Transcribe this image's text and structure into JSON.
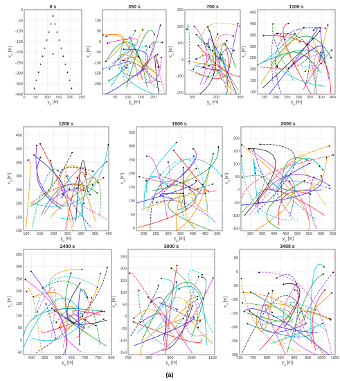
{
  "figure": {
    "caption": "(a)",
    "xlabel": "y",
    "xlabel_sub": "D",
    "xlabel_unit": "[m]",
    "ylabel": "x",
    "ylabel_sub": "D",
    "ylabel_unit": "[m]"
  },
  "chart_data": [
    {
      "type": "line",
      "title": "0 s",
      "xlim": [
        0,
        250
      ],
      "ylim": [
        -400,
        0
      ],
      "xticks": [
        0,
        50,
        100,
        150,
        200,
        250
      ],
      "yticks": [
        -400,
        -350,
        -300,
        -250,
        -200,
        -150,
        -100,
        -50,
        0
      ],
      "xtick_labels": [
        "0",
        "50",
        "100",
        "150",
        "200",
        "250"
      ],
      "ytick_labels": [
        "-400",
        "-350",
        "-300",
        "-250",
        "-200",
        "-150",
        "-100",
        "-50",
        "0"
      ]
    },
    {
      "type": "line",
      "title": "350 s",
      "xlim": [
        0,
        250
      ],
      "ylim": [
        -250,
        150
      ],
      "xticks": [
        50,
        100,
        150,
        200
      ],
      "yticks": [
        -200,
        -150,
        -100,
        -50,
        0,
        50,
        100
      ],
      "xtick_labels": [
        "50",
        "100",
        "150",
        "200"
      ],
      "ytick_labels": [
        "-200",
        "-150",
        "-100",
        "-50",
        "0",
        "50",
        "100"
      ]
    },
    {
      "type": "line",
      "title": "700 s",
      "xlim": [
        70,
        300
      ],
      "ylim": [
        -210,
        300
      ],
      "xticks": [
        100,
        200,
        300
      ],
      "yticks": [
        -200,
        -100,
        0,
        100,
        200,
        300
      ],
      "xtick_labels": [
        "100",
        "200",
        "300"
      ],
      "ytick_labels": [
        "-200",
        "-100",
        "0",
        "100",
        "200",
        "300"
      ]
    },
    {
      "type": "line",
      "title": "1100 s",
      "xlim": [
        120,
        460
      ],
      "ylim": [
        90,
        460
      ],
      "xticks": [
        150,
        200,
        250,
        300,
        350,
        400,
        450
      ],
      "yticks": [
        100,
        150,
        200,
        250,
        300,
        350,
        400,
        450
      ],
      "xtick_labels": [
        "150",
        "200",
        "250",
        "300",
        "350",
        "400",
        "450"
      ],
      "ytick_labels": [
        "100",
        "150",
        "200",
        "250",
        "300",
        "350",
        "400",
        "450"
      ]
    },
    {
      "type": "line",
      "title": "1200 s",
      "xlim": [
        90,
        400
      ],
      "ylim": [
        100,
        480
      ],
      "xticks": [
        100,
        150,
        200,
        250,
        300,
        350,
        400
      ],
      "yticks": [
        100,
        150,
        200,
        250,
        300,
        350,
        400,
        450
      ],
      "xtick_labels": [
        "100",
        "150",
        "200",
        "250",
        "300",
        "350",
        "400"
      ],
      "ytick_labels": [
        "100",
        "150",
        "200",
        "250",
        "300",
        "350",
        "400",
        "450"
      ]
    },
    {
      "type": "line",
      "title": "1600 s",
      "xlim": [
        170,
        520
      ],
      "ylim": [
        -10,
        370
      ],
      "xticks": [
        200,
        250,
        300,
        350,
        400,
        450,
        500
      ],
      "yticks": [
        0,
        50,
        100,
        150,
        200,
        250,
        300,
        350
      ],
      "xtick_labels": [
        "200",
        "250",
        "300",
        "350",
        "400",
        "450",
        "500"
      ],
      "ytick_labels": [
        "0",
        "50",
        "100",
        "150",
        "200",
        "250",
        "300",
        "350"
      ]
    },
    {
      "type": "line",
      "title": "2000 s",
      "xlim": [
        260,
        660
      ],
      "ylim": [
        -160,
        245
      ],
      "xticks": [
        300,
        350,
        400,
        450,
        500,
        550,
        600,
        650
      ],
      "yticks": [
        -150,
        -100,
        -50,
        0,
        50,
        100,
        150,
        200
      ],
      "xtick_labels": [
        "300",
        "350",
        "400",
        "450",
        "500",
        "550",
        "600",
        "650"
      ],
      "ytick_labels": [
        "-150",
        "-100",
        "-50",
        "0",
        "50",
        "100",
        "150",
        "200"
      ]
    },
    {
      "type": "line",
      "title": "2400 s",
      "xlim": [
        470,
        800
      ],
      "ylim": [
        -60,
        370
      ],
      "xticks": [
        500,
        550,
        600,
        650,
        700,
        750,
        800
      ],
      "yticks": [
        -50,
        0,
        50,
        100,
        150,
        200,
        250,
        300,
        350
      ],
      "xtick_labels": [
        "500",
        "550",
        "600",
        "650",
        "700",
        "750",
        "800"
      ],
      "ytick_labels": [
        "-50",
        "0",
        "50",
        "100",
        "150",
        "200",
        "250",
        "300",
        "350"
      ]
    },
    {
      "type": "line",
      "title": "3000 s",
      "xlim": [
        700,
        1110
      ],
      "ylim": [
        -160,
        280
      ],
      "xticks": [
        700,
        800,
        900,
        1000,
        1100
      ],
      "yticks": [
        -150,
        -100,
        -50,
        0,
        50,
        100,
        150,
        200,
        250
      ],
      "xtick_labels": [
        "700",
        "800",
        "900",
        "1000",
        "1100"
      ],
      "ytick_labels": [
        "-150",
        "-100",
        "-50",
        "0",
        "50",
        "100",
        "150",
        "200",
        "250"
      ]
    },
    {
      "type": "line",
      "title": "3400 s",
      "xlim": [
        700,
        1050
      ],
      "ylim": [
        -300,
        80
      ],
      "xticks": [
        700,
        750,
        800,
        850,
        900,
        950,
        1000,
        1050
      ],
      "yticks": [
        -300,
        -250,
        -200,
        -150,
        -100,
        -50,
        0,
        50
      ],
      "xtick_labels": [
        "700",
        "750",
        "800",
        "850",
        "900",
        "950",
        "1000",
        "1050"
      ],
      "ytick_labels": [
        "-300",
        "-250",
        "-200",
        "-150",
        "-100",
        "-50",
        "0",
        "50"
      ]
    }
  ],
  "colors": [
    "#1f1fff",
    "#ff2020",
    "#1a9a1a",
    "#00c8e0",
    "#e040e0",
    "#e0a000",
    "#202020",
    "#ff8c00",
    "#8a2be2",
    "#00a0a0"
  ]
}
